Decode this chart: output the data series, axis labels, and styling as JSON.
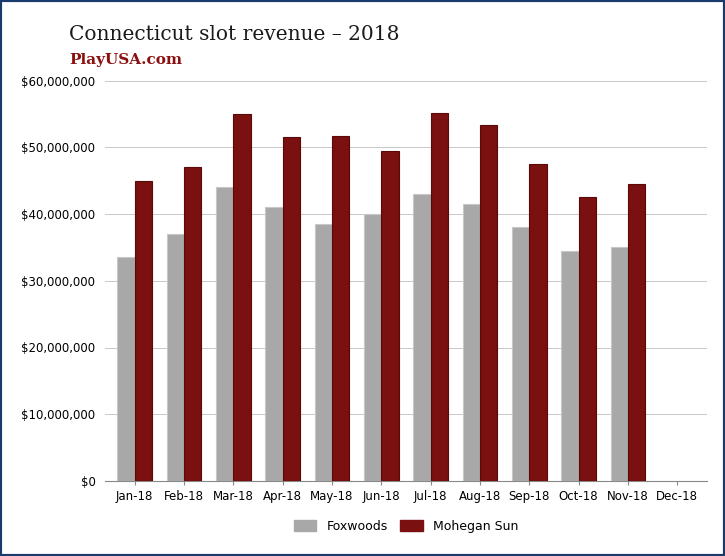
{
  "title_line1": "Connecticut slot revenue – 2018",
  "subtitle": "PlayUSA.com",
  "categories": [
    "Jan-18",
    "Feb-18",
    "Mar-18",
    "Apr-18",
    "May-18",
    "Jun-18",
    "Jul-18",
    "Aug-18",
    "Sep-18",
    "Oct-18",
    "Nov-18",
    "Dec-18"
  ],
  "foxwoods": [
    33500000,
    37000000,
    44000000,
    41000000,
    38500000,
    40000000,
    43000000,
    41500000,
    38000000,
    34500000,
    35000000,
    null
  ],
  "mohegan_sun": [
    45000000,
    47000000,
    55000000,
    51500000,
    51700000,
    49500000,
    55200000,
    53300000,
    47500000,
    42500000,
    44500000,
    null
  ],
  "foxwoods_color": "#a8a8a8",
  "foxwoods_edge_color": "#c8c8c8",
  "mohegan_color": "#7a1010",
  "mohegan_edge_color": "#5a0808",
  "ylim": [
    0,
    60000000
  ],
  "yticks": [
    0,
    10000000,
    20000000,
    30000000,
    40000000,
    50000000,
    60000000
  ],
  "legend_foxwoods": "Foxwoods",
  "legend_mohegan": "Mohegan Sun",
  "background_color": "#ffffff",
  "border_color": "#1a3a6b",
  "title_color": "#1a1a1a",
  "subtitle_color": "#8b1010",
  "grid_color": "#c8c8c8",
  "bar_width": 0.35
}
